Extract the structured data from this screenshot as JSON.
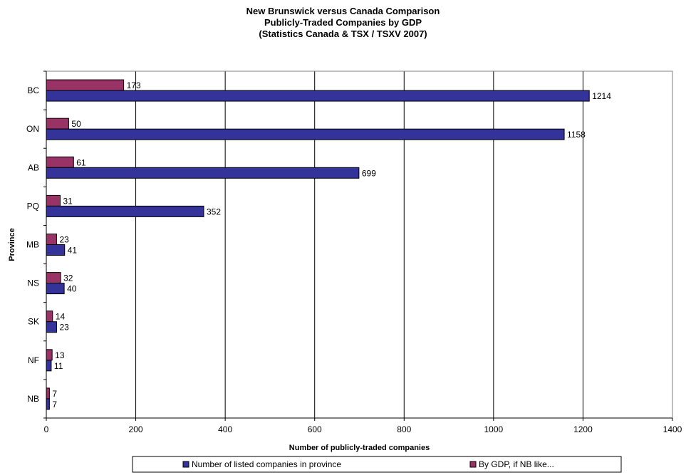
{
  "chart_data": {
    "type": "bar",
    "orientation": "horizontal",
    "title": [
      "New Brunswick versus Canada Comparison",
      "Publicly-Traded Companies by GDP",
      "(Statistics Canada & TSX / TSXV 2007)"
    ],
    "xlabel": "Number of publicly-traded companies",
    "ylabel": "Province",
    "categories": [
      "BC",
      "ON",
      "AB",
      "PQ",
      "MB",
      "NS",
      "SK",
      "NF",
      "NB"
    ],
    "series": [
      {
        "name": "By GDP, if NB like...",
        "color": "#993366",
        "values": [
          173,
          50,
          61,
          31,
          23,
          32,
          14,
          13,
          7
        ]
      },
      {
        "name": "Number of listed companies in province",
        "color": "#333399",
        "values": [
          1214,
          1158,
          699,
          352,
          41,
          40,
          23,
          11,
          7
        ]
      }
    ],
    "xlim": [
      0,
      1400
    ],
    "xticks": [
      0,
      200,
      400,
      600,
      800,
      1000,
      1200,
      1400
    ],
    "grid": true,
    "legend_position": "bottom"
  }
}
